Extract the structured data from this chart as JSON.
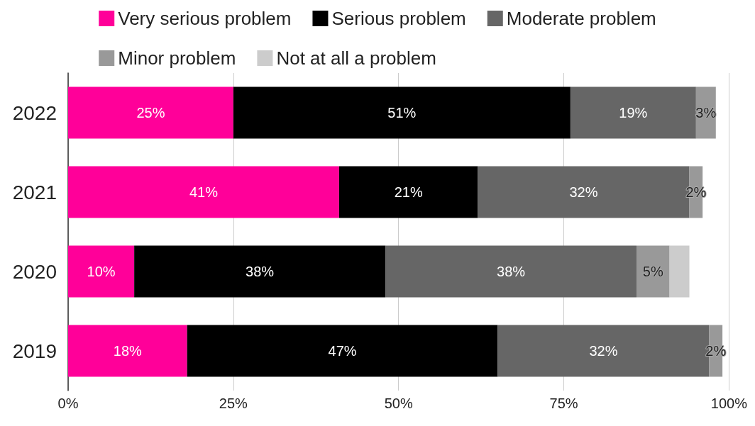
{
  "chart_data": {
    "type": "bar",
    "orientation": "horizontal",
    "stacked": true,
    "categories": [
      "2022",
      "2021",
      "2020",
      "2019"
    ],
    "series": [
      {
        "name": "Very serious problem",
        "color": "#ff0099",
        "values": [
          25,
          41,
          10,
          18
        ],
        "value_labels": [
          "25%",
          "41%",
          "10%",
          "18%"
        ]
      },
      {
        "name": "Serious problem",
        "color": "#000000",
        "values": [
          51,
          21,
          38,
          47
        ],
        "value_labels": [
          "51%",
          "21%",
          "38%",
          "47%"
        ]
      },
      {
        "name": "Moderate problem",
        "color": "#666666",
        "values": [
          19,
          32,
          38,
          32
        ],
        "value_labels": [
          "19%",
          "32%",
          "38%",
          "32%"
        ]
      },
      {
        "name": "Minor problem",
        "color": "#999999",
        "values": [
          3,
          2,
          5,
          2
        ],
        "value_labels": [
          "3%",
          "2%",
          "5%",
          "2%"
        ]
      },
      {
        "name": "Not at all a problem",
        "color": "#cccccc",
        "values": [
          null,
          null,
          3,
          null
        ],
        "value_labels": [
          null,
          null,
          null,
          null
        ]
      }
    ],
    "xlim": [
      0,
      100
    ],
    "xticks": [
      {
        "value": 0,
        "label": "0%"
      },
      {
        "value": 25,
        "label": "25%"
      },
      {
        "value": 50,
        "label": "50%"
      },
      {
        "value": 75,
        "label": "75%"
      },
      {
        "value": 100,
        "label": "100%"
      }
    ],
    "grid": "x",
    "legend": "top"
  }
}
